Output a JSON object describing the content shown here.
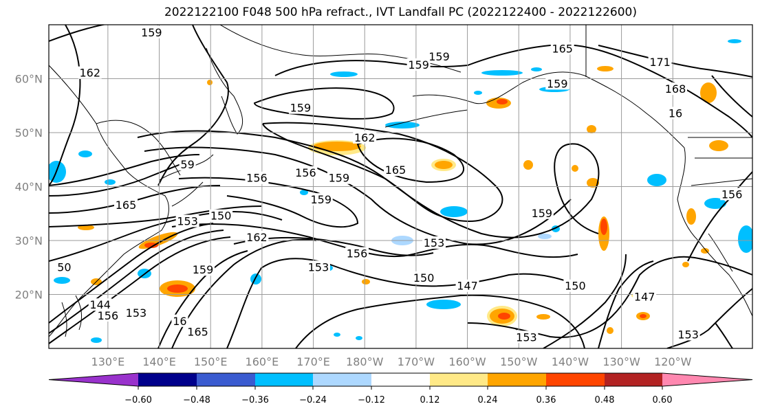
{
  "title": "2022122100 F048 500 hPa refract., IVT Landfall PC (2022122400 - 2022122600)",
  "colors": {
    "bins": [
      "#9932cc",
      "#00008b",
      "#3a5bd0",
      "#00bfff",
      "#add8ff",
      "#ffffff",
      "#ffe987",
      "#ffa500",
      "#ff4500",
      "#b22222",
      "#ff88b0"
    ],
    "contour": "#000000",
    "grid": "#9a9a9a"
  },
  "map": {
    "lon_labels": [
      "130°E",
      "140°E",
      "150°E",
      "160°E",
      "170°E",
      "180°W",
      "170°W",
      "160°W",
      "150°W",
      "140°W",
      "130°W",
      "120°W"
    ],
    "lat_labels": [
      "60°N",
      "50°N",
      "40°N",
      "30°N",
      "20°N"
    ]
  },
  "colorbar": {
    "ticks": [
      "−0.60",
      "−0.48",
      "−0.36",
      "−0.24",
      "−0.12",
      "0.12",
      "0.24",
      "0.36",
      "0.48",
      "0.60"
    ]
  },
  "contour_labels": [
    {
      "text": "159",
      "lon": 138.5,
      "lat": 68.5
    },
    {
      "text": "162",
      "lon": 126.5,
      "lat": 61.0
    },
    {
      "text": "159",
      "lon": 167.5,
      "lat": 54.5
    },
    {
      "text": "159",
      "lon": 190.5,
      "lat": 62.5
    },
    {
      "text": "159",
      "lon": 194.5,
      "lat": 64.0
    },
    {
      "text": "165",
      "lon": 218.5,
      "lat": 65.5
    },
    {
      "text": "171",
      "lon": 237.5,
      "lat": 63.0
    },
    {
      "text": "159",
      "lon": 217.5,
      "lat": 59.0
    },
    {
      "text": "168",
      "lon": 240.5,
      "lat": 58.0
    },
    {
      "text": "16",
      "lon": 240.5,
      "lat": 53.5
    },
    {
      "text": "162",
      "lon": 180.0,
      "lat": 49.0
    },
    {
      "text": "165",
      "lon": 186.0,
      "lat": 43.0
    },
    {
      "text": "59",
      "lon": 145.5,
      "lat": 44.0
    },
    {
      "text": "156",
      "lon": 159.0,
      "lat": 41.5
    },
    {
      "text": "156",
      "lon": 168.5,
      "lat": 42.5
    },
    {
      "text": "159",
      "lon": 175.0,
      "lat": 41.5
    },
    {
      "text": "159",
      "lon": 171.5,
      "lat": 37.5
    },
    {
      "text": "165",
      "lon": 133.5,
      "lat": 36.5
    },
    {
      "text": "153",
      "lon": 145.5,
      "lat": 33.5
    },
    {
      "text": "150",
      "lon": 152.0,
      "lat": 34.5
    },
    {
      "text": "159",
      "lon": 214.5,
      "lat": 35.0
    },
    {
      "text": "162",
      "lon": 159.0,
      "lat": 30.5
    },
    {
      "text": "153",
      "lon": 193.5,
      "lat": 29.5
    },
    {
      "text": "156",
      "lon": 178.5,
      "lat": 27.5
    },
    {
      "text": "153",
      "lon": 171.0,
      "lat": 25.0
    },
    {
      "text": "50",
      "lon": 121.5,
      "lat": 25.0
    },
    {
      "text": "159",
      "lon": 148.5,
      "lat": 24.5
    },
    {
      "text": "150",
      "lon": 191.5,
      "lat": 23.0
    },
    {
      "text": "147",
      "lon": 200.0,
      "lat": 21.5
    },
    {
      "text": "150",
      "lon": 221.0,
      "lat": 21.5
    },
    {
      "text": "147",
      "lon": 234.5,
      "lat": 19.5
    },
    {
      "text": "144",
      "lon": 128.5,
      "lat": 18.0
    },
    {
      "text": "156",
      "lon": 130.0,
      "lat": 16.0
    },
    {
      "text": "153",
      "lon": 135.5,
      "lat": 16.5
    },
    {
      "text": "16",
      "lon": 144.0,
      "lat": 15.0
    },
    {
      "text": "165",
      "lon": 147.5,
      "lat": 13.0
    },
    {
      "text": "153",
      "lon": 211.5,
      "lat": 12.0
    },
    {
      "text": "153",
      "lon": 243.0,
      "lat": 12.5
    },
    {
      "text": "156",
      "lon": 251.5,
      "lat": 38.5
    }
  ]
}
